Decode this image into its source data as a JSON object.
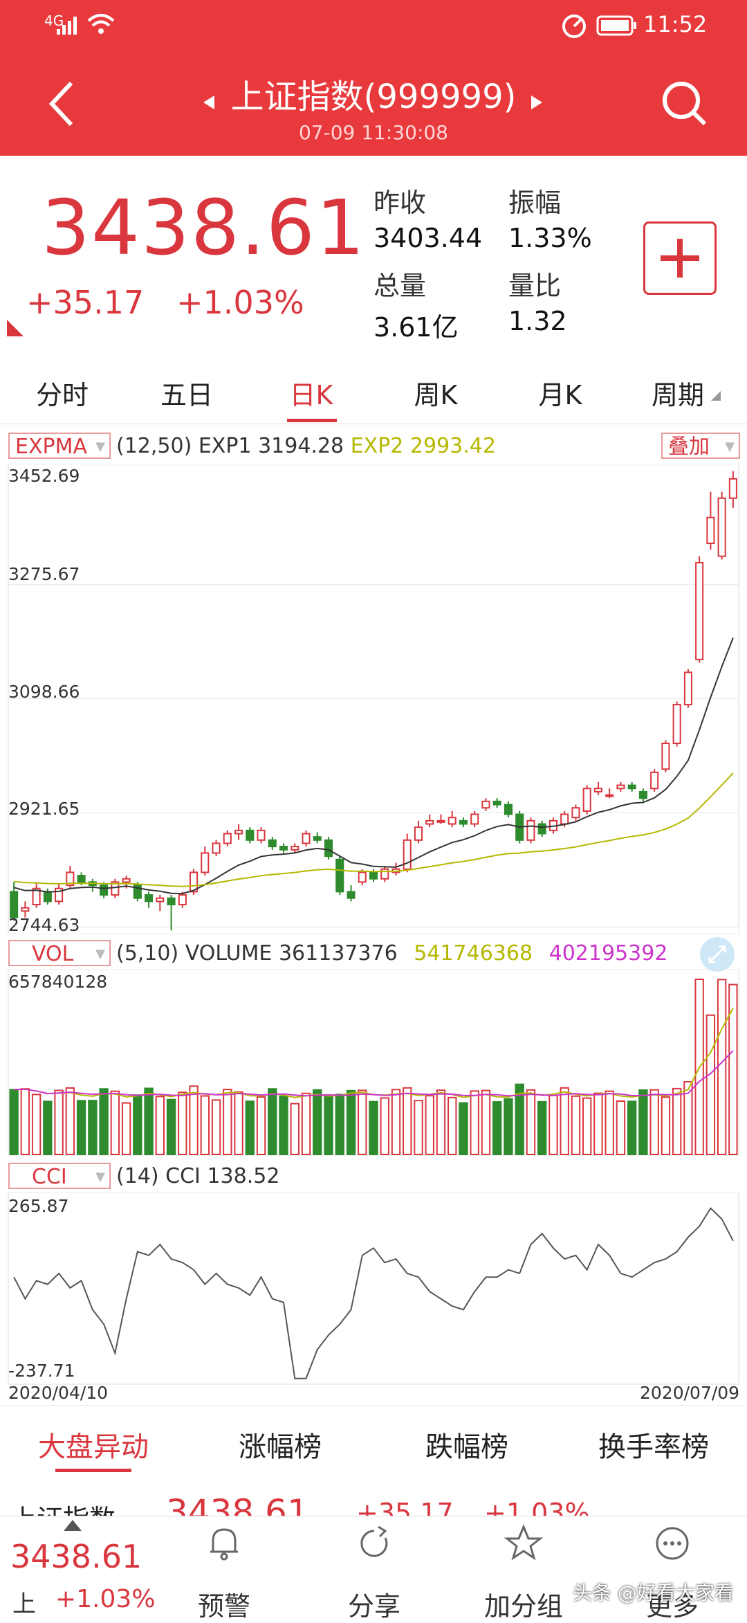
{
  "status": {
    "network": "4G",
    "time": "11:52"
  },
  "header": {
    "title": "上证指数(999999)",
    "datetime": "07-09 11:30:08"
  },
  "quote": {
    "price": "3438.61",
    "change": "+35.17",
    "change_pct": "+1.03%",
    "prev_close_label": "昨收",
    "prev_close": "3403.44",
    "amplitude_label": "振幅",
    "amplitude": "1.33%",
    "volume_label": "总量",
    "volume": "3.61亿",
    "vol_ratio_label": "量比",
    "vol_ratio": "1.32"
  },
  "tabs": [
    "分时",
    "五日",
    "日K",
    "周K",
    "月K",
    "周期"
  ],
  "active_tab": 2,
  "main_indicator": {
    "name": "EXPMA",
    "params": "(12,50)",
    "exp1_label": "EXP1",
    "exp1": "3194.28",
    "exp2_label": "EXP2",
    "exp2": "2993.42",
    "overlay_label": "叠加",
    "y_ticks": [
      "3452.69",
      "3275.67",
      "3098.66",
      "2921.65",
      "2744.63"
    ]
  },
  "vol_indicator": {
    "name": "VOL",
    "params": "(5,10)",
    "label": "VOLUME",
    "value": "361137376",
    "ma5": "541746368",
    "ma10": "402195392",
    "y_max": "657840128"
  },
  "cci_indicator": {
    "name": "CCI",
    "params": "(14)",
    "label": "CCI",
    "value": "138.52",
    "y_max": "265.87",
    "y_min": "-237.71"
  },
  "dates": {
    "start": "2020/04/10",
    "end": "2020/07/09"
  },
  "bottom_tabs": [
    "大盘异动",
    "涨幅榜",
    "跌幅榜",
    "换手率榜"
  ],
  "ticker_row": {
    "name": "上证指数",
    "price": "3438.61",
    "change": "+35.17",
    "pct": "+1.03%"
  },
  "bottom_bar": {
    "price": "3438.61",
    "market": "上",
    "pct": "+1.03%",
    "items": [
      "预警",
      "分享",
      "加分组",
      "更多"
    ]
  },
  "watermark": "头条 @好看大家看",
  "colors": {
    "header": "#e83a3d",
    "up": "#d9363e",
    "down": "#2e8b2e",
    "exp1": "#333333",
    "exp2": "#b5b800",
    "ma10": "#cc33cc"
  },
  "chart_data": {
    "type": "candlestick",
    "title": "上证指数 日K",
    "x_range": [
      "2020/04/10",
      "2020/07/09"
    ],
    "ylim": [
      2744.63,
      3452.69
    ],
    "candles": [
      [
        2800,
        2760,
        2815,
        2755
      ],
      [
        2770,
        2775,
        2785,
        2760
      ],
      [
        2780,
        2805,
        2815,
        2775
      ],
      [
        2800,
        2785,
        2805,
        2780
      ],
      [
        2785,
        2805,
        2812,
        2780
      ],
      [
        2810,
        2830,
        2840,
        2805
      ],
      [
        2825,
        2815,
        2830,
        2810
      ],
      [
        2815,
        2810,
        2820,
        2800
      ],
      [
        2810,
        2795,
        2815,
        2790
      ],
      [
        2795,
        2815,
        2820,
        2790
      ],
      [
        2815,
        2820,
        2825,
        2805
      ],
      [
        2810,
        2790,
        2815,
        2785
      ],
      [
        2795,
        2785,
        2800,
        2775
      ],
      [
        2785,
        2790,
        2795,
        2770
      ],
      [
        2790,
        2780,
        2795,
        2740
      ],
      [
        2780,
        2795,
        2800,
        2775
      ],
      [
        2800,
        2830,
        2835,
        2795
      ],
      [
        2830,
        2860,
        2870,
        2825
      ],
      [
        2860,
        2875,
        2880,
        2855
      ],
      [
        2875,
        2890,
        2895,
        2870
      ],
      [
        2890,
        2895,
        2905,
        2880
      ],
      [
        2895,
        2880,
        2900,
        2875
      ],
      [
        2880,
        2895,
        2900,
        2875
      ],
      [
        2880,
        2870,
        2885,
        2865
      ],
      [
        2870,
        2865,
        2875,
        2860
      ],
      [
        2865,
        2870,
        2875,
        2860
      ],
      [
        2875,
        2890,
        2895,
        2870
      ],
      [
        2885,
        2880,
        2892,
        2875
      ],
      [
        2880,
        2855,
        2885,
        2850
      ],
      [
        2850,
        2800,
        2855,
        2795
      ],
      [
        2800,
        2790,
        2810,
        2785
      ],
      [
        2815,
        2830,
        2835,
        2810
      ],
      [
        2830,
        2820,
        2835,
        2815
      ],
      [
        2820,
        2835,
        2840,
        2815
      ],
      [
        2830,
        2835,
        2845,
        2825
      ],
      [
        2835,
        2880,
        2890,
        2830
      ],
      [
        2880,
        2900,
        2910,
        2875
      ],
      [
        2905,
        2910,
        2920,
        2900
      ],
      [
        2910,
        2910,
        2920,
        2905
      ],
      [
        2905,
        2915,
        2925,
        2900
      ],
      [
        2910,
        2905,
        2915,
        2900
      ],
      [
        2905,
        2920,
        2925,
        2900
      ],
      [
        2930,
        2940,
        2945,
        2925
      ],
      [
        2940,
        2935,
        2945,
        2930
      ],
      [
        2935,
        2920,
        2940,
        2915
      ],
      [
        2920,
        2880,
        2925,
        2875
      ],
      [
        2880,
        2910,
        2915,
        2875
      ],
      [
        2905,
        2890,
        2910,
        2885
      ],
      [
        2895,
        2910,
        2915,
        2890
      ],
      [
        2905,
        2920,
        2925,
        2900
      ],
      [
        2915,
        2930,
        2935,
        2910
      ],
      [
        2925,
        2960,
        2965,
        2920
      ],
      [
        2955,
        2960,
        2970,
        2950
      ],
      [
        2950,
        2950,
        2960,
        2945
      ],
      [
        2960,
        2965,
        2970,
        2955
      ],
      [
        2965,
        2960,
        2970,
        2955
      ],
      [
        2955,
        2945,
        2960,
        2940
      ],
      [
        2960,
        2985,
        2990,
        2955
      ],
      [
        2990,
        3030,
        3035,
        2985
      ],
      [
        3030,
        3090,
        3095,
        3025
      ],
      [
        3090,
        3140,
        3145,
        3085
      ],
      [
        3160,
        3310,
        3320,
        3155
      ],
      [
        3340,
        3380,
        3420,
        3330
      ],
      [
        3320,
        3410,
        3420,
        3315
      ],
      [
        3410,
        3440,
        3452,
        3395
      ]
    ]
  }
}
